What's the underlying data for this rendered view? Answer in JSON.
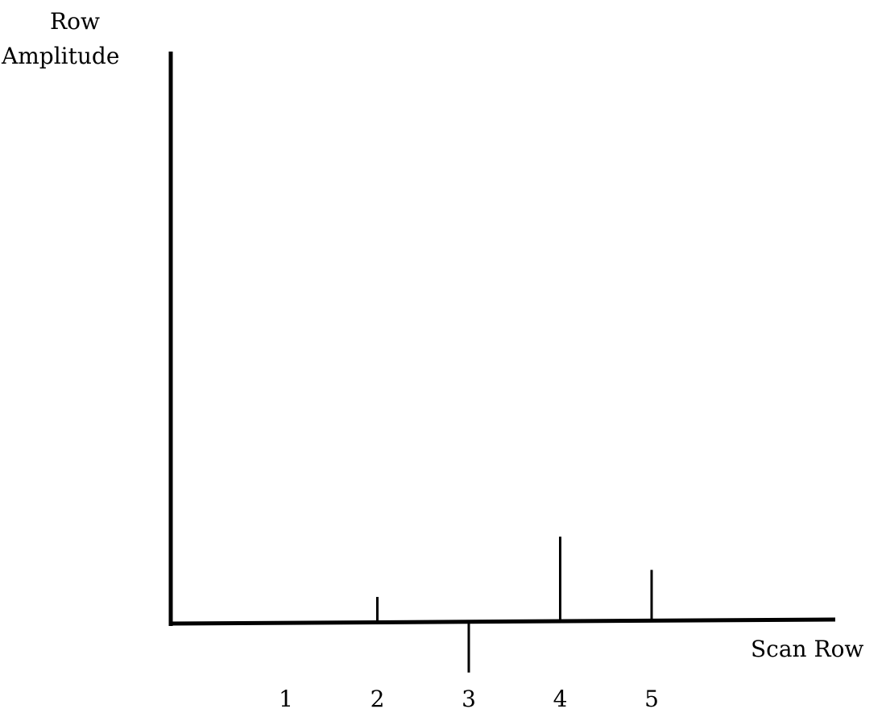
{
  "chart_data": {
    "type": "bar",
    "ylabel_lines": [
      "Row",
      "Amplitude"
    ],
    "xlabel": "Scan Row",
    "categories": [
      "1",
      "2",
      "3",
      "4",
      "5"
    ],
    "values": [
      0,
      0.3,
      -0.6,
      1.0,
      0.6
    ],
    "ylim": [
      -0.7,
      6.5
    ],
    "grid": false,
    "legend": "none",
    "color": "#000000"
  }
}
